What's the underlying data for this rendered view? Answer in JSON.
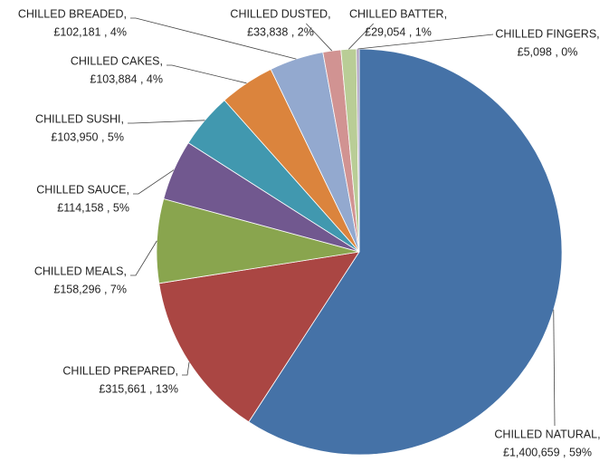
{
  "chart_data": {
    "type": "pie",
    "categories": [
      "CHILLED NATURAL,",
      "CHILLED PREPARED,",
      "CHILLED MEALS,",
      "CHILLED SAUCE,",
      "CHILLED SUSHI,",
      "CHILLED CAKES,",
      "CHILLED BREADED,",
      "CHILLED DUSTED,",
      "CHILLED BATTER,",
      "CHILLED FINGERS,"
    ],
    "values": [
      1400659,
      315661,
      158296,
      114158,
      103950,
      103884,
      102181,
      33838,
      29054,
      5098
    ],
    "value_labels": [
      "£1,400,659 , 59%",
      "£315,661 , 13%",
      "£158,296 , 7%",
      "£114,158 , 5%",
      "£103,950 , 5%",
      "£103,884 , 4%",
      "£102,181 , 4%",
      "£33,838 , 2%",
      "£29,054 , 1%",
      "£5,098 , 0%"
    ],
    "colors": [
      "#4572a7",
      "#aa4643",
      "#89a54e",
      "#71588f",
      "#4198af",
      "#db843d",
      "#93a9cf",
      "#d19392",
      "#b9cd96",
      "#a99bbd"
    ]
  }
}
